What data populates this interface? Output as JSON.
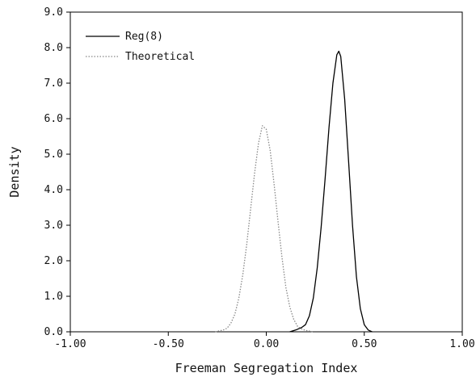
{
  "chart_data": {
    "type": "line",
    "title": "",
    "xlabel": "Freeman Segregation Index",
    "ylabel": "Density",
    "xlim": [
      -1.0,
      1.0
    ],
    "ylim": [
      0.0,
      9.0
    ],
    "x_ticks": [
      "-1.00",
      "-0.50",
      "0.00",
      "0.50",
      "1.00"
    ],
    "y_ticks": [
      "0.0",
      "1.0",
      "2.0",
      "3.0",
      "4.0",
      "5.0",
      "6.0",
      "7.0",
      "8.0",
      "9.0"
    ],
    "grid": false,
    "legend_position": "top-left",
    "series": [
      {
        "name": "Reg(8)",
        "style": "solid",
        "color": "#000000",
        "x": [
          0.12,
          0.15,
          0.18,
          0.2,
          0.22,
          0.24,
          0.26,
          0.28,
          0.3,
          0.32,
          0.34,
          0.36,
          0.37,
          0.38,
          0.4,
          0.42,
          0.44,
          0.46,
          0.48,
          0.5,
          0.52,
          0.54
        ],
        "y": [
          0.0,
          0.05,
          0.12,
          0.2,
          0.45,
          0.95,
          1.8,
          2.95,
          4.3,
          5.75,
          7.0,
          7.8,
          7.9,
          7.75,
          6.55,
          4.8,
          3.0,
          1.55,
          0.65,
          0.2,
          0.05,
          0.0
        ]
      },
      {
        "name": "Theoretical",
        "style": "dotted",
        "color": "#888888",
        "x": [
          -0.26,
          -0.22,
          -0.2,
          -0.18,
          -0.16,
          -0.14,
          -0.12,
          -0.1,
          -0.08,
          -0.06,
          -0.04,
          -0.02,
          0.0,
          0.02,
          0.04,
          0.06,
          0.08,
          0.1,
          0.12,
          0.14,
          0.16,
          0.18,
          0.2,
          0.22,
          0.24
        ],
        "y": [
          0.0,
          0.05,
          0.1,
          0.25,
          0.5,
          0.95,
          1.6,
          2.45,
          3.45,
          4.45,
          5.3,
          5.8,
          5.7,
          5.1,
          4.15,
          3.1,
          2.1,
          1.25,
          0.7,
          0.35,
          0.15,
          0.08,
          0.04,
          0.02,
          0.0
        ]
      }
    ]
  }
}
